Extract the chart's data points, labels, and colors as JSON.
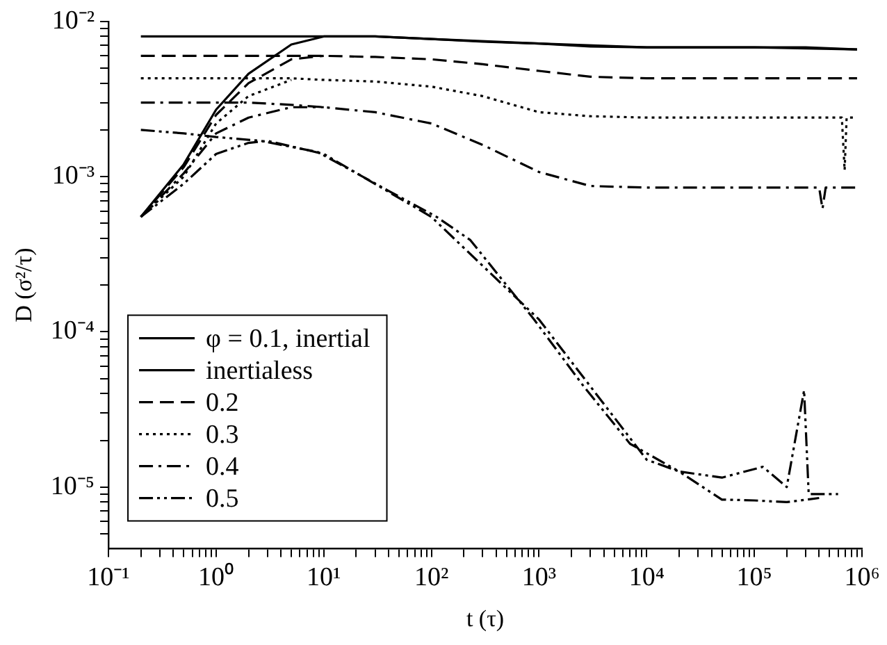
{
  "chart_data": {
    "type": "line",
    "xlabel": "t (τ)",
    "ylabel": "D (σ²/τ)",
    "log": "xy",
    "grid": false,
    "legend": "bottom left",
    "marker": "none",
    "xlim": [
      0.1,
      1000000
    ],
    "ylim": [
      4e-06,
      0.01
    ],
    "xticks": [
      {
        "value": 0.1,
        "label": "10⁻¹"
      },
      {
        "value": 0.2,
        "label": null
      },
      {
        "value": 0.3,
        "label": null
      },
      {
        "value": 0.4,
        "label": null
      },
      {
        "value": 0.5,
        "label": null
      },
      {
        "value": 0.6,
        "label": null
      },
      {
        "value": 0.7,
        "label": null
      },
      {
        "value": 0.8,
        "label": null
      },
      {
        "value": 0.9,
        "label": null
      },
      {
        "value": 1,
        "label": "10⁰"
      },
      {
        "value": 2,
        "label": null
      },
      {
        "value": 3,
        "label": null
      },
      {
        "value": 4,
        "label": null
      },
      {
        "value": 5,
        "label": null
      },
      {
        "value": 6,
        "label": null
      },
      {
        "value": 7,
        "label": null
      },
      {
        "value": 8,
        "label": null
      },
      {
        "value": 9,
        "label": null
      },
      {
        "value": 10,
        "label": "10¹"
      },
      {
        "value": 20,
        "label": null
      },
      {
        "value": 30,
        "label": null
      },
      {
        "value": 40,
        "label": null
      },
      {
        "value": 50,
        "label": null
      },
      {
        "value": 60,
        "label": null
      },
      {
        "value": 70,
        "label": null
      },
      {
        "value": 80,
        "label": null
      },
      {
        "value": 90,
        "label": null
      },
      {
        "value": 100,
        "label": "10²"
      },
      {
        "value": 200,
        "label": null
      },
      {
        "value": 300,
        "label": null
      },
      {
        "value": 400,
        "label": null
      },
      {
        "value": 500,
        "label": null
      },
      {
        "value": 600,
        "label": null
      },
      {
        "value": 700,
        "label": null
      },
      {
        "value": 800,
        "label": null
      },
      {
        "value": 900,
        "label": null
      },
      {
        "value": 1000,
        "label": "10³"
      },
      {
        "value": 2000,
        "label": null
      },
      {
        "value": 3000,
        "label": null
      },
      {
        "value": 4000,
        "label": null
      },
      {
        "value": 5000,
        "label": null
      },
      {
        "value": 6000,
        "label": null
      },
      {
        "value": 7000,
        "label": null
      },
      {
        "value": 8000,
        "label": null
      },
      {
        "value": 9000,
        "label": null
      },
      {
        "value": 10000,
        "label": "10⁴"
      },
      {
        "value": 20000,
        "label": null
      },
      {
        "value": 30000,
        "label": null
      },
      {
        "value": 40000,
        "label": null
      },
      {
        "value": 50000,
        "label": null
      },
      {
        "value": 60000,
        "label": null
      },
      {
        "value": 70000,
        "label": null
      },
      {
        "value": 80000,
        "label": null
      },
      {
        "value": 90000,
        "label": null
      },
      {
        "value": 100000,
        "label": "10⁵"
      },
      {
        "value": 200000,
        "label": null
      },
      {
        "value": 300000,
        "label": null
      },
      {
        "value": 400000,
        "label": null
      },
      {
        "value": 500000,
        "label": null
      },
      {
        "value": 600000,
        "label": null
      },
      {
        "value": 700000,
        "label": null
      },
      {
        "value": 800000,
        "label": null
      },
      {
        "value": 900000,
        "label": null
      },
      {
        "value": 1000000,
        "label": "10⁶"
      }
    ],
    "yticks": [
      {
        "value": 5e-06,
        "label": null
      },
      {
        "value": 6e-06,
        "label": null
      },
      {
        "value": 7e-06,
        "label": null
      },
      {
        "value": 8e-06,
        "label": null
      },
      {
        "value": 9e-06,
        "label": null
      },
      {
        "value": 1e-05,
        "label": "10⁻⁵"
      },
      {
        "value": 2e-05,
        "label": null
      },
      {
        "value": 3e-05,
        "label": null
      },
      {
        "value": 4e-05,
        "label": null
      },
      {
        "value": 5e-05,
        "label": null
      },
      {
        "value": 6e-05,
        "label": null
      },
      {
        "value": 7e-05,
        "label": null
      },
      {
        "value": 8e-05,
        "label": null
      },
      {
        "value": 9e-05,
        "label": null
      },
      {
        "value": 0.0001,
        "label": "10⁻⁴"
      },
      {
        "value": 0.0002,
        "label": null
      },
      {
        "value": 0.0003,
        "label": null
      },
      {
        "value": 0.0004,
        "label": null
      },
      {
        "value": 0.0005,
        "label": null
      },
      {
        "value": 0.0006,
        "label": null
      },
      {
        "value": 0.0007,
        "label": null
      },
      {
        "value": 0.0008,
        "label": null
      },
      {
        "value": 0.0009,
        "label": null
      },
      {
        "value": 0.001,
        "label": "10⁻³"
      },
      {
        "value": 0.002,
        "label": null
      },
      {
        "value": 0.003,
        "label": null
      },
      {
        "value": 0.004,
        "label": null
      },
      {
        "value": 0.005,
        "label": null
      },
      {
        "value": 0.006,
        "label": null
      },
      {
        "value": 0.007,
        "label": null
      },
      {
        "value": 0.008,
        "label": null
      },
      {
        "value": 0.009,
        "label": null
      },
      {
        "value": 0.01,
        "label": "10⁻²"
      }
    ],
    "series": [
      {
        "name": "φ = 0.1, inertial",
        "color": "#000000",
        "line_style": "solid",
        "x": [
          0.2,
          0.5,
          1,
          2,
          5,
          10,
          30,
          100,
          1000,
          10000,
          100000,
          900000
        ],
        "values": [
          0.00055,
          0.0012,
          0.0027,
          0.0046,
          0.0071,
          0.008,
          0.008,
          0.0077,
          0.0072,
          0.0068,
          0.0068,
          0.0066
        ]
      },
      {
        "name": "inertialess",
        "color": "#000000",
        "line_style": "solid",
        "x": [
          0.2,
          0.5,
          1,
          2,
          5,
          10,
          30,
          100,
          300,
          1000,
          3000,
          10000,
          30000,
          100000,
          300000,
          900000
        ],
        "values": [
          0.008,
          0.008,
          0.008,
          0.008,
          0.008,
          0.008,
          0.008,
          0.0077,
          0.0074,
          0.0072,
          0.0069,
          0.0068,
          0.0068,
          0.0068,
          0.0068,
          0.0066
        ]
      },
      {
        "name": "0.2",
        "color": "#000000",
        "line_style": "dashed",
        "x": [
          0.2,
          0.5,
          1,
          2,
          5,
          10,
          30,
          100,
          300,
          1000,
          3000,
          10000,
          30000,
          100000,
          300000,
          900000
        ],
        "values": [
          0.006,
          0.006,
          0.006,
          0.006,
          0.006,
          0.006,
          0.0059,
          0.0057,
          0.0053,
          0.0048,
          0.0044,
          0.0043,
          0.0043,
          0.0043,
          0.0043,
          0.0043
        ]
      },
      {
        "color": "#000000",
        "line_style": "dashed",
        "x": [
          0.2,
          0.5,
          1,
          2,
          5,
          10
        ],
        "values": [
          0.00055,
          0.00115,
          0.0025,
          0.004,
          0.0057,
          0.006
        ]
      },
      {
        "name": "0.3",
        "color": "#000000",
        "line_style": "dotted",
        "x": [
          0.2,
          0.5,
          1,
          2,
          5,
          10,
          30,
          100,
          300,
          1000,
          3000,
          10000,
          100000,
          300000,
          650000,
          690000,
          720000,
          900000
        ],
        "values": [
          0.0043,
          0.0043,
          0.0043,
          0.0043,
          0.0043,
          0.0042,
          0.0041,
          0.0038,
          0.0033,
          0.0026,
          0.00245,
          0.0024,
          0.0024,
          0.0024,
          0.0024,
          0.0011,
          0.0024,
          0.0024
        ]
      },
      {
        "color": "#000000",
        "line_style": "dotted",
        "x": [
          0.2,
          0.5,
          1,
          2,
          5
        ],
        "values": [
          0.00055,
          0.001,
          0.0022,
          0.0033,
          0.0042
        ]
      },
      {
        "name": "0.4",
        "color": "#000000",
        "line_style": "dashdot",
        "x": [
          0.2,
          0.5,
          1,
          2,
          5,
          10,
          30,
          100,
          300,
          1000,
          3000,
          10000,
          100000,
          400000,
          430000,
          460000,
          900000
        ],
        "values": [
          0.003,
          0.003,
          0.003,
          0.003,
          0.0029,
          0.0028,
          0.0026,
          0.0022,
          0.0016,
          0.00107,
          0.00087,
          0.00085,
          0.00085,
          0.00085,
          0.00062,
          0.00085,
          0.00085
        ]
      },
      {
        "color": "#000000",
        "line_style": "dashdot",
        "x": [
          0.2,
          0.5,
          1,
          2,
          5,
          10
        ],
        "values": [
          0.00055,
          0.00105,
          0.0019,
          0.0024,
          0.0028,
          0.0028
        ]
      },
      {
        "name": "0.5",
        "color": "#000000",
        "line_style": "dashdotdot",
        "x": [
          0.2,
          0.5,
          1,
          2.6,
          8.8,
          40,
          112,
          230,
          900,
          2570,
          7000,
          20000,
          50000,
          120000,
          200000,
          290000,
          320000,
          600000
        ],
        "values": [
          0.002,
          0.0019,
          0.0018,
          0.0017,
          0.00144,
          0.00081,
          0.00055,
          0.00039,
          0.00012,
          4.5e-05,
          1.9e-05,
          1.26e-05,
          1.15e-05,
          1.35e-05,
          1e-05,
          4.2e-05,
          9e-06,
          9e-06
        ]
      },
      {
        "color": "#000000",
        "line_style": "dashdotdot",
        "x": [
          0.2,
          0.5,
          1,
          2,
          3,
          10,
          100,
          1000,
          10000,
          20000,
          50000,
          100000,
          200000,
          400000
        ],
        "values": [
          0.00055,
          0.0009,
          0.0014,
          0.00165,
          0.0017,
          0.0014,
          0.00055,
          0.00012,
          1.5e-05,
          1.26e-05,
          8.3e-06,
          8.2e-06,
          8e-06,
          8.5e-06
        ]
      }
    ]
  }
}
